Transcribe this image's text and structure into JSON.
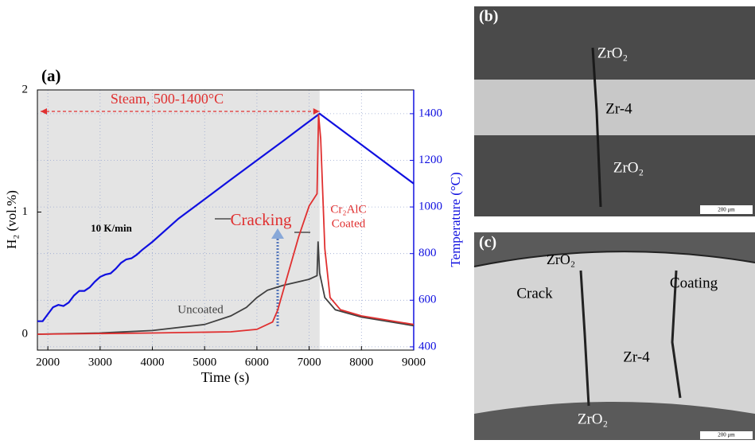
{
  "chart_data": {
    "type": "line",
    "panel_label": "(a)",
    "xlabel": "Time (s)",
    "ylabel": "H₂ (vol.%)",
    "y2label": "Temperature (°C)",
    "xlim": [
      1800,
      9000
    ],
    "xticks": [
      2000,
      3000,
      4000,
      5000,
      6000,
      7000,
      8000,
      9000
    ],
    "ylim": [
      -0.13,
      2
    ],
    "yticks": [
      0,
      1,
      2
    ],
    "y2lim": [
      386,
      1502
    ],
    "y2ticks": [
      400,
      600,
      800,
      1000,
      1200,
      1400
    ],
    "grid": true,
    "shaded_xrange": [
      1800,
      7200
    ],
    "annotations": [
      "Steam, 500-1400°C",
      "10 K/min",
      "Cracking",
      "Uncoated",
      "Cr₂AlC",
      "Coated"
    ],
    "series": [
      {
        "color": "#1010e0",
        "axis": "y2",
        "x": [
          1800,
          1900,
          2000,
          2100,
          2200,
          2300,
          2400,
          2500,
          2600,
          2700,
          2800,
          2900,
          3000,
          3100,
          3200,
          3300,
          3400,
          3500,
          3600,
          3700,
          3800,
          4000,
          4500,
          5000,
          5500,
          6000,
          6500,
          7000,
          7200,
          8000,
          9000
        ],
        "values": [
          510,
          510,
          540,
          570,
          580,
          575,
          590,
          620,
          640,
          640,
          655,
          680,
          700,
          710,
          715,
          735,
          760,
          775,
          780,
          795,
          815,
          850,
          950,
          1033,
          1117,
          1200,
          1283,
          1367,
          1400,
          1267,
          1100
        ]
      },
      {
        "color": "#404040",
        "x": [
          1800,
          3000,
          4000,
          5000,
          5500,
          5800,
          6000,
          6200,
          6500,
          7000,
          7150,
          7170,
          7200,
          7300,
          7500,
          8000,
          9000
        ],
        "values": [
          0,
          0.01,
          0.03,
          0.08,
          0.15,
          0.22,
          0.3,
          0.36,
          0.4,
          0.45,
          0.48,
          0.76,
          0.5,
          0.3,
          0.2,
          0.14,
          0.07
        ]
      },
      {
        "color": "#e03030",
        "x": [
          1800,
          4000,
          5500,
          6000,
          6300,
          6400,
          6600,
          6800,
          7000,
          7150,
          7180,
          7220,
          7300,
          7400,
          7600,
          8000,
          9000
        ],
        "values": [
          0,
          0.01,
          0.02,
          0.04,
          0.1,
          0.2,
          0.5,
          0.8,
          1.05,
          1.15,
          1.8,
          1.6,
          0.7,
          0.3,
          0.2,
          0.15,
          0.08
        ]
      }
    ]
  },
  "panels": [
    {
      "label": "(b)",
      "texts": [
        "ZrO₂",
        "Zr-4",
        "ZrO₂"
      ],
      "scale_bar": "200 μm"
    },
    {
      "label": "(c)",
      "texts": [
        "ZrO₂",
        "Crack",
        "Coating",
        "Zr-4",
        "ZrO₂"
      ],
      "scale_bar": "200 μm"
    }
  ]
}
